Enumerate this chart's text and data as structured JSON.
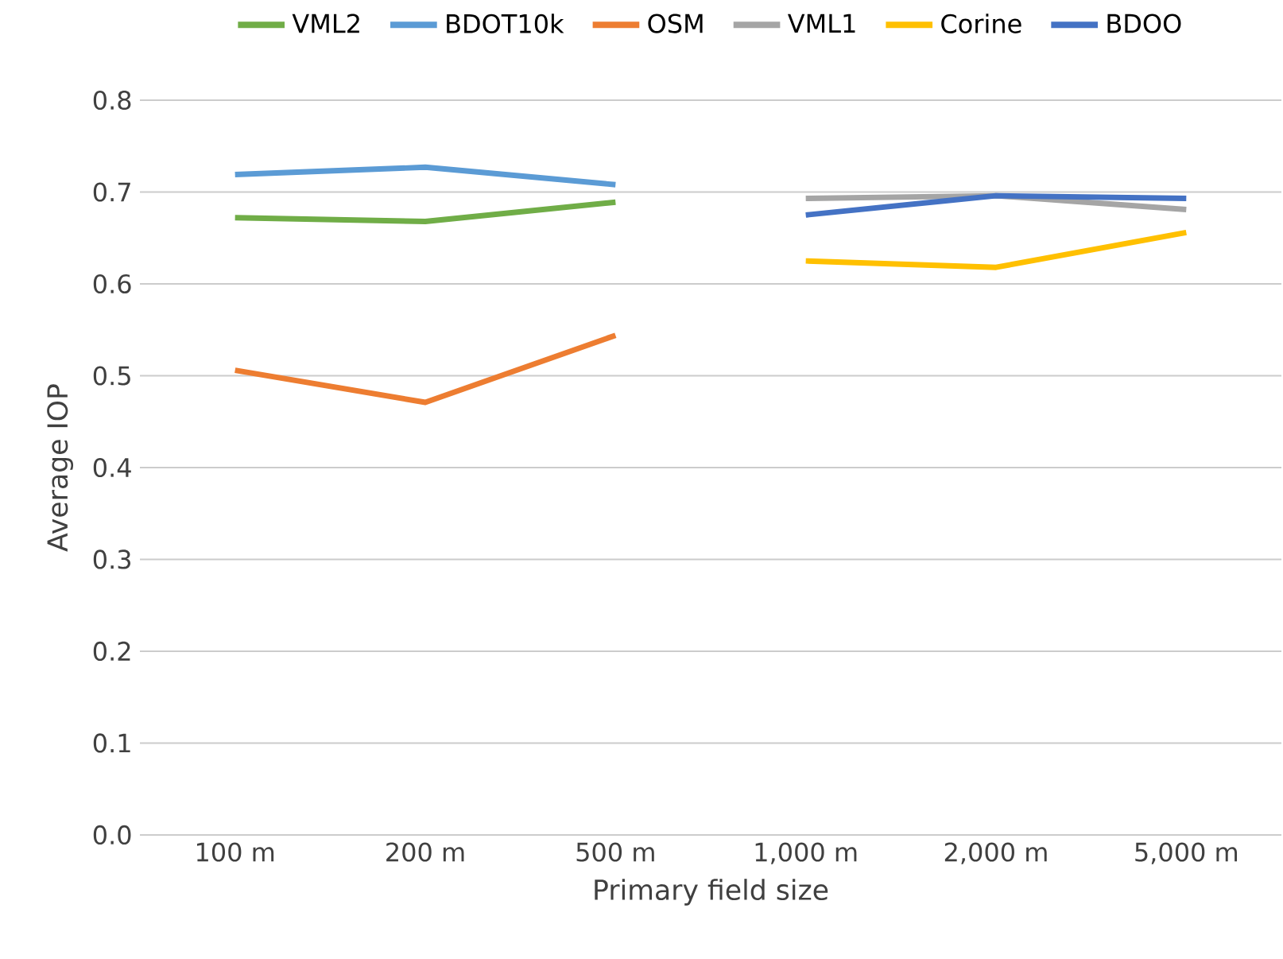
{
  "chart_data": {
    "type": "line",
    "xlabel": "Primary field size",
    "ylabel": "Average IOP",
    "categories": [
      "100 m",
      "200 m",
      "500 m",
      "1,000 m",
      "2,000 m",
      "5,000 m"
    ],
    "series": [
      {
        "name": "VML2",
        "color": "#70ad47",
        "values": [
          0.672,
          0.668,
          0.689,
          null,
          null,
          null
        ]
      },
      {
        "name": "BDOT10k",
        "color": "#5b9bd5",
        "values": [
          0.719,
          0.727,
          0.708,
          null,
          null,
          null
        ]
      },
      {
        "name": "OSM",
        "color": "#ed7d31",
        "values": [
          0.506,
          0.471,
          0.544,
          null,
          null,
          null
        ]
      },
      {
        "name": "VML1",
        "color": "#a5a5a5",
        "values": [
          null,
          null,
          null,
          0.693,
          0.696,
          0.681
        ]
      },
      {
        "name": "Corine",
        "color": "#ffc000",
        "values": [
          null,
          null,
          null,
          0.625,
          0.618,
          0.656
        ]
      },
      {
        "name": "BDOO",
        "color": "#4472c4",
        "values": [
          null,
          null,
          null,
          0.675,
          0.696,
          0.693
        ]
      }
    ],
    "ylim": [
      0,
      0.8
    ],
    "yticks": [
      {
        "value": 0,
        "label": "0.0"
      },
      {
        "value": 0.1,
        "label": "0.1"
      },
      {
        "value": 0.2,
        "label": "0.2"
      },
      {
        "value": 0.3,
        "label": "0.3"
      },
      {
        "value": 0.4,
        "label": "0.4"
      },
      {
        "value": 0.5,
        "label": "0.5"
      },
      {
        "value": 0.6,
        "label": "0.6"
      },
      {
        "value": 0.7,
        "label": "0.7"
      },
      {
        "value": 0.8,
        "label": "0.8"
      }
    ],
    "grid": "y",
    "legend": "top"
  }
}
